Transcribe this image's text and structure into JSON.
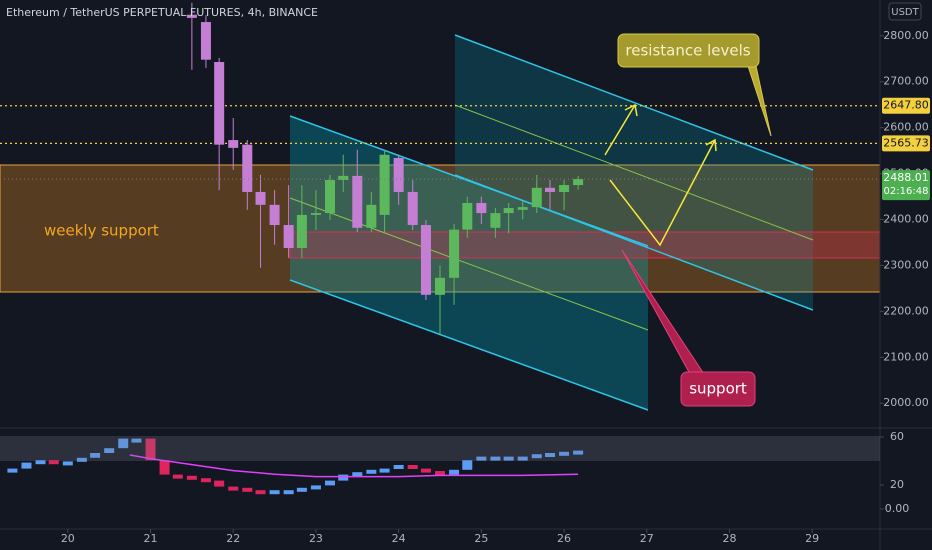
{
  "chart_data": {
    "type": "candlestick",
    "title": "Ethereum / TetherUS PERPETUAL FUTURES, 4h, BINANCE",
    "currency": "USDT",
    "x": [
      21.5,
      21.67,
      21.83,
      22,
      22.17,
      22.33,
      22.5,
      22.67,
      22.83,
      23,
      23.17,
      23.33,
      23.5,
      23.67,
      23.83,
      24,
      24.17,
      24.33,
      24.5,
      24.67,
      24.83,
      25,
      25.17,
      25.33,
      25.5,
      25.67,
      25.83,
      26,
      26.17
    ],
    "open": [
      2846,
      2830,
      2743,
      2573,
      2563,
      2460,
      2432,
      2388,
      2338,
      2410,
      2414,
      2486,
      2495,
      2382,
      2410,
      2534,
      2460,
      2388,
      2236,
      2273,
      2378,
      2436,
      2382,
      2414,
      2421,
      2427,
      2469,
      2460,
      2475
    ],
    "high": [
      2872,
      2845,
      2752,
      2621,
      2573,
      2497,
      2464,
      2475,
      2475,
      2464,
      2497,
      2541,
      2552,
      2460,
      2552,
      2541,
      2486,
      2399,
      2300,
      2390,
      2450,
      2450,
      2425,
      2436,
      2440,
      2497,
      2486,
      2486,
      2495
    ],
    "low": [
      2726,
      2730,
      2464,
      2508,
      2421,
      2295,
      2345,
      2316,
      2316,
      2377,
      2399,
      2460,
      2373,
      2373,
      2373,
      2432,
      2377,
      2225,
      2149,
      2214,
      2360,
      2390,
      2360,
      2370,
      2400,
      2414,
      2420,
      2420,
      2465
    ],
    "close": [
      2839,
      2748,
      2563,
      2556,
      2460,
      2432,
      2388,
      2338,
      2410,
      2414,
      2486,
      2495,
      2382,
      2432,
      2541,
      2460,
      2388,
      2236,
      2273,
      2378,
      2436,
      2414,
      2414,
      2425,
      2427,
      2469,
      2460,
      2475,
      2488.01
    ],
    "up_color": "#5cb85c",
    "down_color": "#c47fd5",
    "xlim": [
      19.18,
      29.82
    ],
    "xticks": [
      20,
      21,
      22,
      23,
      24,
      25,
      26,
      27,
      28,
      29
    ],
    "ylim": [
      1946,
      2878
    ],
    "yticks": [
      {
        "value": 2000,
        "label": "2000.00"
      },
      {
        "value": 2100,
        "label": "2100.00"
      },
      {
        "value": 2200,
        "label": "2200.00"
      },
      {
        "value": 2300,
        "label": "2300.00"
      },
      {
        "value": 2400,
        "label": "2400.00"
      },
      {
        "value": 2500,
        "label": "2500.00"
      },
      {
        "value": 2600,
        "label": "2600.00"
      },
      {
        "value": 2700,
        "label": "2700.00"
      },
      {
        "value": 2800,
        "label": "2800.00"
      }
    ],
    "price_lines": [
      {
        "value": 2647.8,
        "label": "2647.80",
        "color": "#f3d03e"
      },
      {
        "value": 2565.73,
        "label": "2565.73",
        "color": "#f3d03e"
      }
    ],
    "last_price": {
      "value": 2488.01,
      "countdown": "02:16:48",
      "color": "#4caf50"
    },
    "annotations": [
      "weekly support",
      "resistance levels",
      "support"
    ],
    "indicator": {
      "x": [
        19.33,
        19.5,
        19.67,
        19.83,
        20,
        20.17,
        20.33,
        20.5,
        20.67,
        20.83,
        21,
        21.17,
        21.33,
        21.5,
        21.67,
        21.83,
        22,
        22.17,
        22.33,
        22.5,
        22.67,
        22.83,
        23,
        23.17,
        23.33,
        23.5,
        23.67,
        23.83,
        24,
        24.17,
        24.33,
        24.5,
        24.67,
        24.83,
        25,
        25.17,
        25.33,
        25.5,
        25.67,
        25.83,
        26,
        26.17
      ],
      "values": [
        32,
        37,
        39,
        38,
        38,
        41,
        45,
        49,
        57,
        57,
        39,
        27,
        26,
        24,
        22,
        17,
        16,
        14,
        13,
        14,
        14,
        16,
        18,
        22,
        27,
        29,
        31,
        32,
        35,
        32,
        30,
        27,
        31,
        39,
        42,
        42,
        42,
        42,
        44,
        45,
        46,
        47
      ],
      "up_color": "#5b9cf6",
      "down_color": "#e0245e",
      "ylim": [
        -17.5,
        67.5
      ],
      "yticks": [
        60,
        20,
        {
          "value": 0,
          "label": "0.00"
        }
      ],
      "line": {
        "x": [
          20.75,
          21,
          21.5,
          22,
          22.5,
          23,
          23.5,
          24,
          24.5,
          25,
          25.5,
          26.17
        ],
        "values": [
          45,
          42,
          37,
          32,
          29,
          27,
          27,
          27,
          28,
          28,
          28,
          29
        ],
        "color": "#e040fb"
      }
    }
  }
}
